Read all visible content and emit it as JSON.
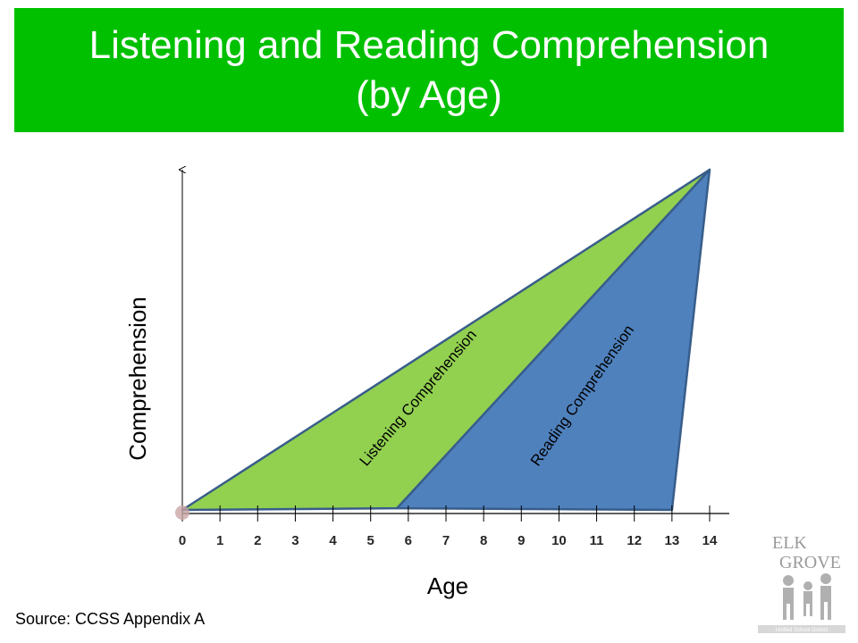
{
  "slide": {
    "title_line1": "Listening and Reading Comprehension",
    "title_line2": "(by Age)",
    "source": "Source: CCSS Appendix A"
  },
  "colors": {
    "title_bar": "#00c000",
    "listening_fill": "#92d050",
    "reading_fill": "#4f81bd",
    "outline": "#385d8a"
  },
  "logo": {
    "line1": "ELK",
    "line2": "GROVE",
    "line3": "Unified School District"
  },
  "chart_data": {
    "type": "area",
    "xlabel": "Age",
    "ylabel": "Comprehension",
    "x_ticks": [
      0,
      1,
      2,
      3,
      4,
      5,
      6,
      7,
      8,
      9,
      10,
      11,
      12,
      13,
      14
    ],
    "xlim": [
      0,
      14
    ],
    "ylim": [
      0,
      1
    ],
    "regions": [
      {
        "name": "Listening Comprehension",
        "points": [
          [
            0,
            0
          ],
          [
            14,
            1
          ],
          [
            5.7,
            0.005
          ]
        ]
      },
      {
        "name": "Reading Comprehension",
        "points": [
          [
            5.7,
            0.005
          ],
          [
            14,
            1
          ],
          [
            13,
            0
          ]
        ]
      }
    ]
  }
}
